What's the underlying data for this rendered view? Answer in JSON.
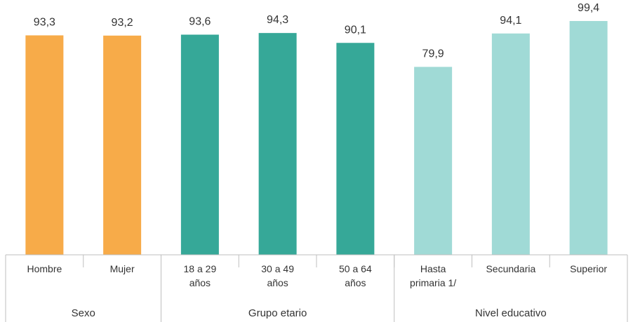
{
  "chart_data": {
    "type": "bar",
    "ylim": [
      0,
      100
    ],
    "grid": false,
    "legend": "none",
    "categories": [
      [
        "Hombre"
      ],
      [
        "Mujer"
      ],
      [
        "18 a 29",
        "años"
      ],
      [
        "30 a 49",
        "años"
      ],
      [
        "50 a 64",
        "años"
      ],
      [
        "Hasta",
        "primaria 1/"
      ],
      [
        "Secundaria"
      ],
      [
        "Superior"
      ]
    ],
    "value_labels": [
      "93,3",
      "93,2",
      "93,6",
      "94,3",
      "90,1",
      "79,9",
      "94,1",
      "99,4"
    ],
    "values": [
      93.3,
      93.2,
      93.6,
      94.3,
      90.1,
      79.9,
      94.1,
      99.4
    ],
    "groups": [
      {
        "name": "Sexo",
        "count": 2,
        "color": "#f7ab49"
      },
      {
        "name": "Grupo etario",
        "count": 3,
        "color": "#36a898"
      },
      {
        "name": "Nivel educativo",
        "count": 3,
        "color": "#a0dad6"
      }
    ]
  }
}
